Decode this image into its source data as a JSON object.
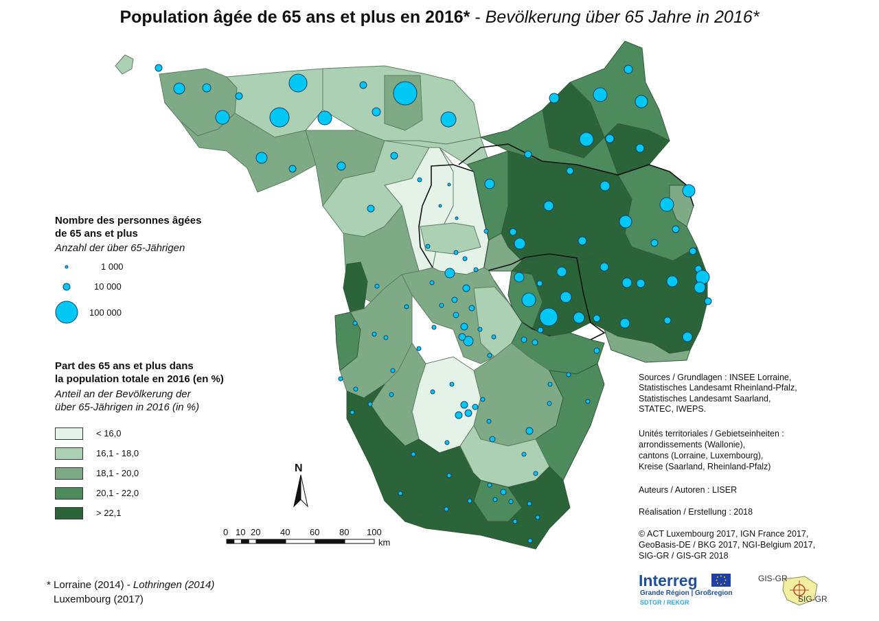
{
  "title": {
    "fr": "Population âgée de 65 ans et plus en 2016*",
    "separator": " - ",
    "de": "Bevölkerung über 65 Jahre in 2016*"
  },
  "legend_bubbles": {
    "title_line1": "Nombre des personnes âgées",
    "title_line2": "de 65 ans et plus",
    "subtitle": "Anzahl der über 65-Jährigen",
    "items": [
      {
        "label": "1 000",
        "value": 1000
      },
      {
        "label": "10 000",
        "value": 10000
      },
      {
        "label": "100 000",
        "value": 100000
      }
    ],
    "fill_color": "#00c8f5",
    "stroke_color": "#14406e"
  },
  "legend_classes": {
    "title_line1": "Part des 65 ans et plus dans",
    "title_line2": "la population totale en 2016 (en %)",
    "subtitle_line1": "Anteil an der Bevölkerung der",
    "subtitle_line2": "über 65-Jährigen in 2016 (in %)",
    "items": [
      {
        "label": "< 16,0",
        "color": "#e4f2e8"
      },
      {
        "label": "16,1 - 18,0",
        "color": "#acd0b4"
      },
      {
        "label": "18,1 - 20,0",
        "color": "#7eaa85"
      },
      {
        "label": "20,1 - 22,0",
        "color": "#4d8a5c"
      },
      {
        "label": "> 22,1",
        "color": "#2a6438"
      }
    ]
  },
  "north": {
    "label": "N",
    "icon": "north-arrow-icon"
  },
  "scale_bar": {
    "ticks": [
      "0",
      "10",
      "20",
      "40",
      "60",
      "80",
      "100"
    ],
    "tick_values": [
      0,
      10,
      20,
      40,
      60,
      80,
      100
    ],
    "unit": "km"
  },
  "info": {
    "sources": [
      "Sources / Grundlagen : INSEE Lorraine,",
      "Statistisches Landesamt Rheinland-Pfalz,",
      "Statistisches Landesamt Saarland,",
      "STATEC, IWEPS."
    ],
    "units": [
      "Unités territoriales / Gebietseinheiten :",
      "arrondissements (Wallonie),",
      "cantons (Lorraine, Luxembourg),",
      "Kreise (Saarland, Rheinland-Pfalz)"
    ],
    "authors": "Auteurs / Autoren : LISER",
    "production": "Réalisation / Erstellung : 2018",
    "copyright": [
      "© ACT Luxembourg 2017, IGN France 2017,",
      "GeoBasis-DE / BKG 2017, NGI-Belgium 2017,",
      "SIG-GR / GIS-GR 2018"
    ]
  },
  "footnote": {
    "line1_fr": "* Lorraine (2014) - ",
    "line1_de": "Lothringen (2014)",
    "line2": "Luxembourg (2017)"
  },
  "logos": {
    "interreg": {
      "brand": "Interreg",
      "line2": "Grande Région | Großregion",
      "line3": "SDTGR / REKGR",
      "flag_icon": "eu-flag-icon"
    },
    "gis": {
      "label_top": "GIS-GR",
      "label_bottom": "SIG-GR",
      "icon": "gis-gr-logo-icon"
    }
  }
}
